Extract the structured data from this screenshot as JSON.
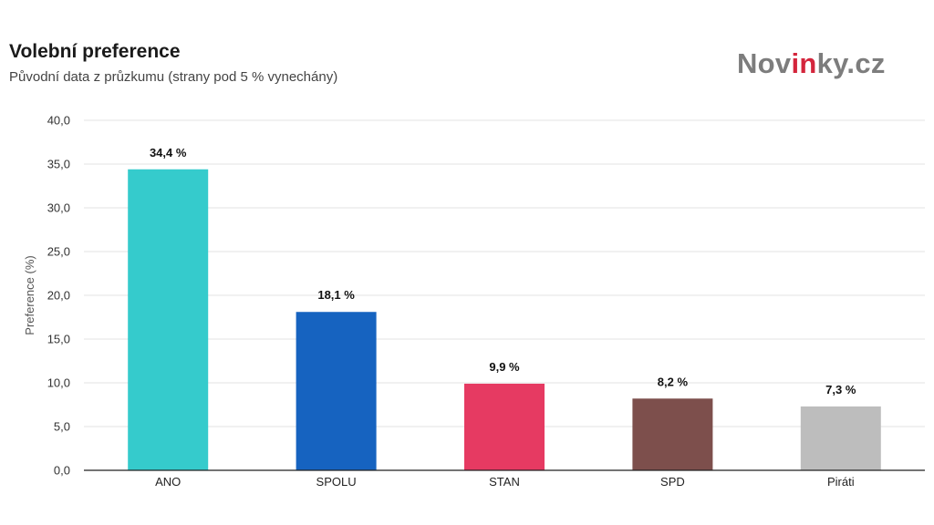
{
  "header": {
    "title": "Volební preference",
    "subtitle": "Původní data z průzkumu (strany pod 5 % vynechány)"
  },
  "logo": {
    "part1": "Nov",
    "part2": "in",
    "part3": "ky.cz",
    "color": "#7d7d7d",
    "accent_color": "#d4253c"
  },
  "chart_data": {
    "type": "bar",
    "title": "Volební preference",
    "subtitle": "Původní data z průzkumu (strany pod 5 % vynechány)",
    "xlabel": "",
    "ylabel": "Preference (%)",
    "ylim": [
      0,
      40
    ],
    "yticks": [
      "0,0",
      "5,0",
      "10,0",
      "15,0",
      "20,0",
      "25,0",
      "30,0",
      "35,0",
      "40,0"
    ],
    "categories": [
      "ANO",
      "SPOLU",
      "STAN",
      "SPD",
      "Piráti"
    ],
    "values": [
      34.4,
      18.1,
      9.9,
      8.2,
      7.3
    ],
    "data_labels": [
      "34,4 %",
      "18,1 %",
      "9,9 %",
      "8,2 %",
      "7,3 %"
    ],
    "colors": [
      "#35cbcc",
      "#1663c0",
      "#e63a62",
      "#7d4f4c",
      "#bdbdbd"
    ],
    "grid": true,
    "legend": "none"
  }
}
